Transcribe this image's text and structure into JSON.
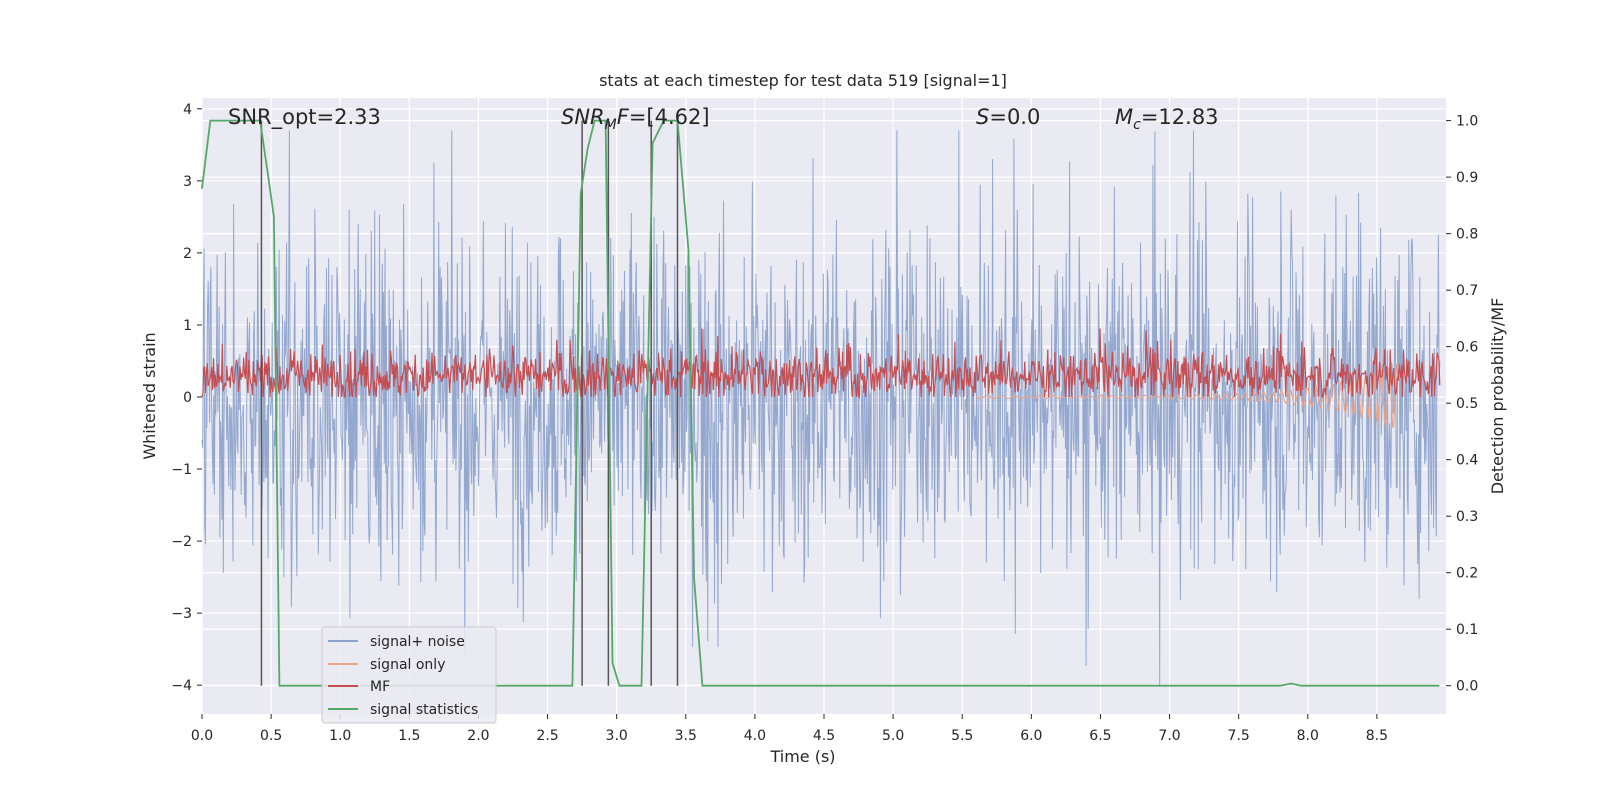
{
  "chart_data": {
    "type": "line",
    "title": "stats at each timestep for test data 519 [signal=1]",
    "xlabel": "Time (s)",
    "ylabel": "Whitened strain",
    "ylabel_right": "Detection probability/MF",
    "xlim": [
      0.0,
      9.0
    ],
    "ylim": [
      -4.4,
      4.15
    ],
    "ylim_right": [
      -0.05,
      1.04
    ],
    "x_ticks": [
      "0.0",
      "0.5",
      "1.0",
      "1.5",
      "2.0",
      "2.5",
      "3.0",
      "3.5",
      "4.0",
      "4.5",
      "5.0",
      "5.5",
      "6.0",
      "6.5",
      "7.0",
      "7.5",
      "8.0",
      "8.5"
    ],
    "y_ticks_left": [
      "−4",
      "−3",
      "−2",
      "−1",
      "0",
      "1",
      "2",
      "3",
      "4"
    ],
    "y_ticks_right": [
      "0.0",
      "0.1",
      "0.2",
      "0.3",
      "0.4",
      "0.5",
      "0.6",
      "0.7",
      "0.8",
      "0.9",
      "1.0"
    ],
    "grid": true,
    "legend_position": "lower-left",
    "annotations": {
      "snr_opt": "SNR_opt=2.33",
      "snr_mf_name": "SNR",
      "snr_mf_sub": "M",
      "snr_mf_tail": "F",
      "snr_mf_value": "=[4.62]",
      "s_name": "S",
      "s_value": "=0.0",
      "mc_name": "M",
      "mc_sub": "c",
      "mc_value": "=12.83"
    },
    "series": [
      {
        "name": "signal+ noise",
        "color": "#8ea3cc",
        "approx_amplitude": [
          -4.0,
          3.7
        ]
      },
      {
        "name": "signal only",
        "color": "#e8a58c"
      },
      {
        "name": "MF",
        "color": "#c44e52",
        "approx_range": [
          0.0,
          0.95
        ]
      },
      {
        "name": "signal statistics",
        "color": "#55a868",
        "axis": "right",
        "x": [
          0.0,
          0.06,
          0.42,
          0.48,
          0.52,
          0.56,
          1.0,
          1.5,
          2.0,
          2.5,
          2.68,
          2.74,
          2.79,
          2.84,
          2.92,
          2.97,
          3.02,
          3.1,
          3.18,
          3.26,
          3.34,
          3.44,
          3.52,
          3.56,
          3.62,
          4.0,
          5.0,
          6.0,
          7.0,
          7.8,
          7.88,
          7.95,
          8.5,
          8.95
        ],
        "y": [
          0.88,
          1.0,
          1.0,
          0.9,
          0.83,
          0.0,
          0.0,
          0.0,
          0.0,
          0.0,
          0.0,
          0.87,
          0.95,
          1.0,
          1.0,
          0.04,
          0.0,
          0.0,
          0.0,
          0.96,
          1.0,
          1.0,
          0.77,
          0.19,
          0.0,
          0.0,
          0.0,
          0.0,
          0.0,
          0.0,
          0.004,
          0.0,
          0.0,
          0.0
        ]
      }
    ],
    "detection_markers_x": [
      0.43,
      2.75,
      2.94,
      3.25,
      3.44
    ]
  }
}
